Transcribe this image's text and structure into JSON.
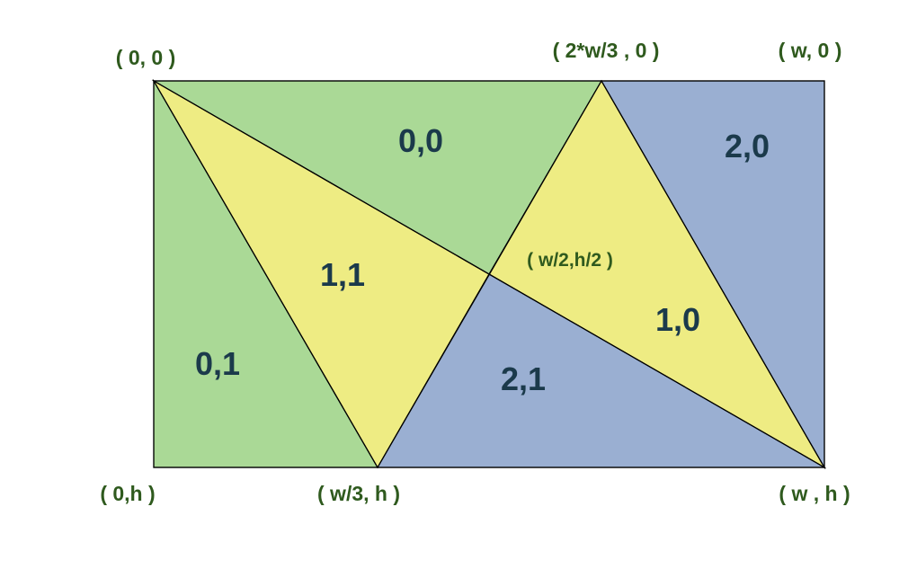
{
  "colors": {
    "green": "#aad996",
    "yellow": "#eeec83",
    "blue": "#9aafd2",
    "region_text": "#1b3a4b",
    "coord_text": "#2f5a1e"
  },
  "triangles": [
    {
      "id": "0,0",
      "label": "0,0",
      "fill": "green"
    },
    {
      "id": "0,1",
      "label": "0,1",
      "fill": "green"
    },
    {
      "id": "1,1",
      "label": "1,1",
      "fill": "yellow"
    },
    {
      "id": "1,0",
      "label": "1,0",
      "fill": "yellow"
    },
    {
      "id": "2,0",
      "label": "2,0",
      "fill": "blue"
    },
    {
      "id": "2,1",
      "label": "2,1",
      "fill": "blue"
    }
  ],
  "vertices": {
    "top_left": "( 0, 0 )",
    "top_two_thirds": "( 2*w/3 , 0 )",
    "top_right": "( w, 0 )",
    "center": "( w/2,h/2 )",
    "bottom_left": "( 0,h )",
    "bottom_third": "( w/3, h )",
    "bottom_right": "( w , h )"
  }
}
